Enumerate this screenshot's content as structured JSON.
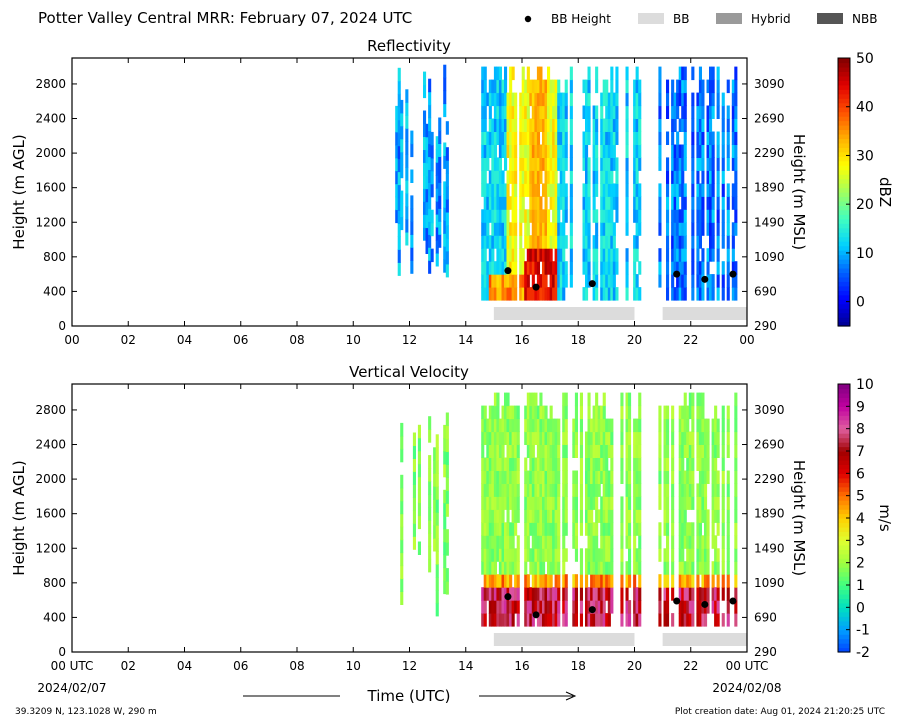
{
  "header": {
    "title": "Potter Valley Central MRR:  February 07, 2024 UTC",
    "legend": [
      {
        "label": "BB Height",
        "kind": "dot",
        "color": "#000000"
      },
      {
        "label": "BB",
        "kind": "swatch",
        "color": "#dcdcdc"
      },
      {
        "label": "Hybrid",
        "kind": "swatch",
        "color": "#9a9a9a"
      },
      {
        "label": "NBB",
        "kind": "swatch",
        "color": "#555555"
      }
    ]
  },
  "footer": {
    "location": "39.3209 N, 123.1028 W, 290 m",
    "created": "Plot creation date: Aug 01, 2024 21:20:25 UTC",
    "start_date": "2024/02/07",
    "end_date": "2024/02/08",
    "time_axis_label": "Time (UTC)"
  },
  "chart_data": [
    {
      "type": "heatmap",
      "title": "Reflectivity",
      "ylabel": "Height (m AGL)",
      "y2label": "Height (m MSL)",
      "colorbar_label": "dBZ",
      "xlim": [
        0,
        24
      ],
      "ylim": [
        0,
        3100
      ],
      "x_ticks": [
        "00",
        "02",
        "04",
        "06",
        "08",
        "10",
        "12",
        "14",
        "16",
        "18",
        "20",
        "22",
        "00"
      ],
      "y_ticks": [
        0,
        400,
        800,
        1200,
        1600,
        2000,
        2400,
        2800
      ],
      "y2_ticks": [
        290,
        690,
        1090,
        1490,
        1890,
        2290,
        2690,
        3090
      ],
      "colorbar": {
        "min": -5,
        "max": 50,
        "ticks": [
          0,
          10,
          20,
          30,
          40,
          50
        ]
      },
      "colormap": [
        "#00008f",
        "#0000ff",
        "#0060ff",
        "#00d0ff",
        "#40ffc0",
        "#a0ff60",
        "#ffff00",
        "#ffb000",
        "#ff5000",
        "#e00000",
        "#800000"
      ],
      "bb_height_points": [
        [
          15.5,
          640
        ],
        [
          16.5,
          450
        ],
        [
          18.5,
          490
        ],
        [
          21.5,
          600
        ],
        [
          22.5,
          540
        ],
        [
          23.5,
          600
        ]
      ],
      "bb_segments": [
        [
          15.0,
          20.0
        ],
        [
          21.0,
          24.0
        ]
      ]
    },
    {
      "type": "heatmap",
      "title": "Vertical Velocity",
      "ylabel": "Height (m AGL)",
      "y2label": "Height (m MSL)",
      "colorbar_label": "m/s",
      "xlim": [
        0,
        24
      ],
      "ylim": [
        0,
        3100
      ],
      "x_ticks": [
        "00 UTC",
        "02",
        "04",
        "06",
        "08",
        "10",
        "12",
        "14",
        "16",
        "18",
        "20",
        "22",
        "00 UTC"
      ],
      "y_ticks": [
        0,
        400,
        800,
        1200,
        1600,
        2000,
        2400,
        2800
      ],
      "y2_ticks": [
        290,
        690,
        1090,
        1490,
        1890,
        2290,
        2690,
        3090
      ],
      "colorbar": {
        "min": -2,
        "max": 10,
        "ticks": [
          -2,
          -1,
          0,
          1,
          2,
          3,
          4,
          5,
          6,
          7,
          8,
          9,
          10
        ]
      },
      "colormap": [
        "#0040ff",
        "#00a0ff",
        "#00e0c0",
        "#40ff80",
        "#a0ff40",
        "#e0ff30",
        "#ffd000",
        "#ff7000",
        "#e00000",
        "#a00000",
        "#e060a0",
        "#c000a0",
        "#800080"
      ],
      "bb_height_points": [
        [
          15.5,
          640
        ],
        [
          16.5,
          430
        ],
        [
          18.5,
          490
        ],
        [
          21.5,
          590
        ],
        [
          22.5,
          550
        ],
        [
          23.5,
          590
        ]
      ],
      "bb_segments": [
        [
          15.0,
          20.0
        ],
        [
          21.0,
          24.0
        ]
      ]
    }
  ]
}
